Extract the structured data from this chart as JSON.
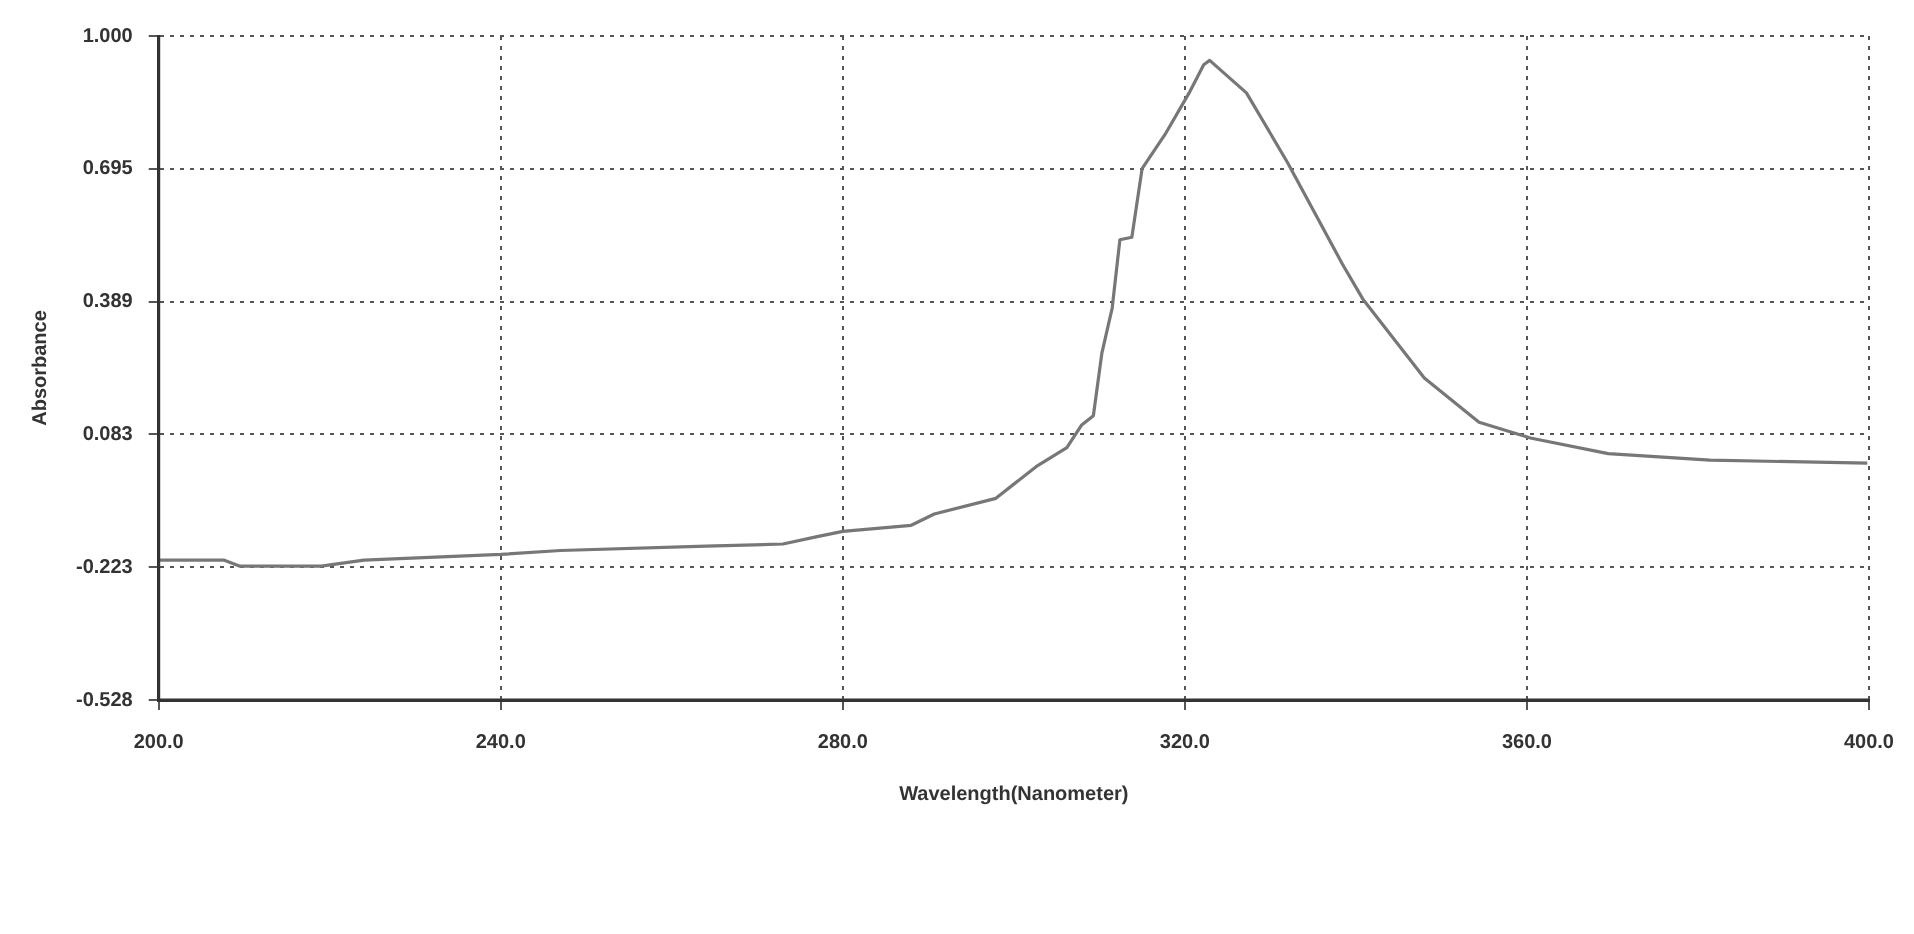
{
  "chart_data": {
    "type": "line",
    "xlabel": "Wavelength(Nanometer)",
    "ylabel": "Absorbance",
    "xlim": [
      200,
      400
    ],
    "xticks": [
      {
        "value": 200,
        "label": "200.0"
      },
      {
        "value": 240,
        "label": "240.0"
      },
      {
        "value": 280,
        "label": "280.0"
      },
      {
        "value": 320,
        "label": "320.0"
      },
      {
        "value": 360,
        "label": "360.0"
      },
      {
        "value": 400,
        "label": "400.0"
      }
    ],
    "ylim": [
      -0.528,
      1
    ],
    "yticks": [
      {
        "value": -0.528,
        "label": "-0.528"
      },
      {
        "value": -0.223,
        "label": "-0.223"
      },
      {
        "value": 0.083,
        "label": "0.083"
      },
      {
        "value": 0.389,
        "label": "0.389"
      },
      {
        "value": 0.695,
        "label": "0.695"
      },
      {
        "value": 1,
        "label": "1.000"
      }
    ],
    "grid": true,
    "legend": false,
    "marker": "none",
    "line_style": "solid",
    "series": [
      {
        "color": "#777777",
        "x": [
          200,
          207.6,
          209.5,
          219,
          224,
          240,
          247,
          264,
          273,
          277,
          280,
          288,
          290.7,
          297.9,
          302.6,
          306.2,
          307.9,
          309.3,
          310.3,
          311.5,
          312.4,
          313.8,
          315,
          317.7,
          320.5,
          322.2,
          322.9,
          327.2,
          332,
          338.4,
          340.8,
          348,
          354.4,
          360.4,
          369.5,
          381.4,
          399.8
        ],
        "values": [
          -0.206,
          -0.206,
          -0.22,
          -0.22,
          -0.206,
          -0.193,
          -0.184,
          -0.174,
          -0.169,
          -0.152,
          -0.14,
          -0.126,
          -0.1,
          -0.064,
          0.009,
          0.053,
          0.104,
          0.126,
          0.271,
          0.374,
          0.531,
          0.537,
          0.695,
          0.774,
          0.869,
          0.934,
          0.944,
          0.869,
          0.709,
          0.476,
          0.395,
          0.213,
          0.111,
          0.075,
          0.039,
          0.024,
          0.017
        ]
      }
    ]
  }
}
